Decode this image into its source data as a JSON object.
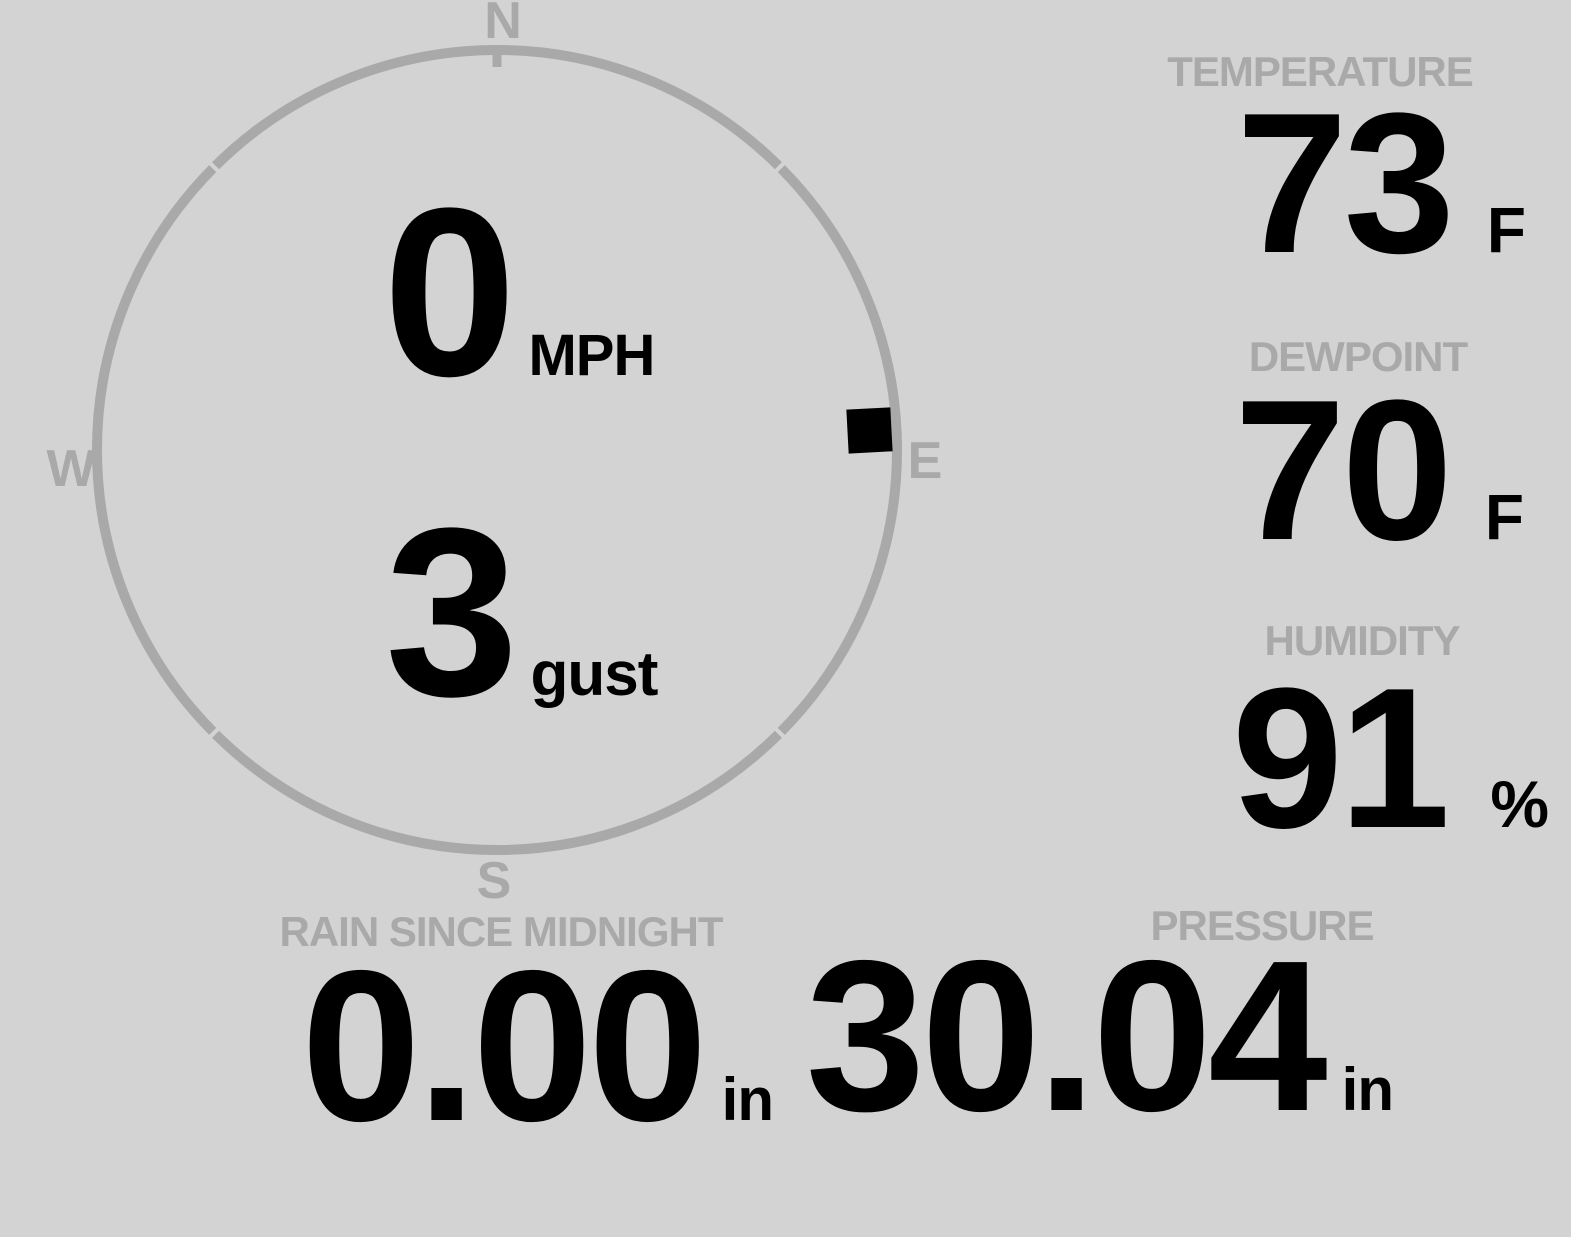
{
  "colors": {
    "background": "#d3d3d3",
    "muted": "#a9a9a9",
    "text": "#000000"
  },
  "wind": {
    "speed_value": "0",
    "speed_unit": "MPH",
    "gust_value": "3",
    "gust_unit": "gust",
    "direction_bearing_deg": 87,
    "compass": {
      "north": "N",
      "east": "E",
      "south": "S",
      "west": "W"
    }
  },
  "readings": {
    "temperature": {
      "label": "TEMPERATURE",
      "value": "73",
      "unit": "F"
    },
    "dewpoint": {
      "label": "DEWPOINT",
      "value": "70",
      "unit": "F"
    },
    "humidity": {
      "label": "HUMIDITY",
      "value": "91",
      "unit": "%"
    },
    "rain_since_midnight": {
      "label": "RAIN SINCE MIDNIGHT",
      "value": "0.00",
      "unit": "in"
    },
    "pressure": {
      "label": "PRESSURE",
      "value": "30.04",
      "unit": "in"
    }
  }
}
